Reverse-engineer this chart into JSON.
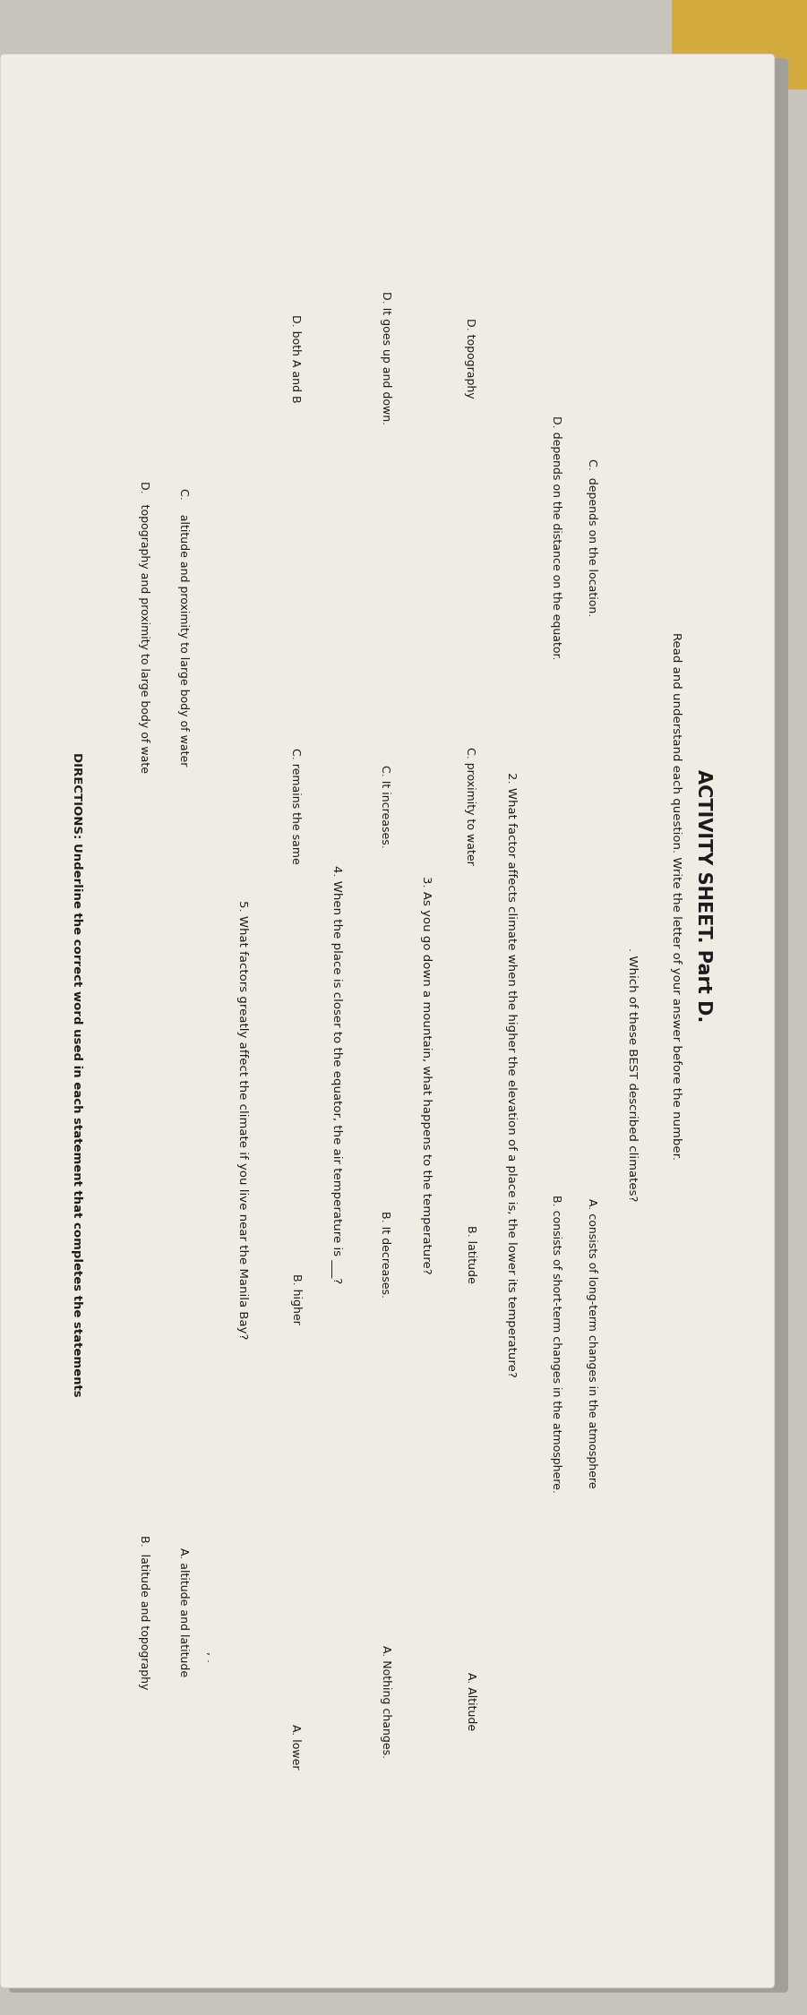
{
  "bg_color": "#c8c4bb",
  "paper_color": "#f0ece4",
  "yellow_color": "#d4a830",
  "text_color": "#1a1a1a",
  "title": "ACTIVITY SHEET. Part D.",
  "instructions": "Read and understand each question. Write the letter of your answer before the number.",
  "q1_text": ". Which of these BEST described climates?",
  "q1_optA": "A. consists of long-term changes in the atmosphere",
  "q1_optC": "C.  depends on the location.",
  "q1_optB": "B. consists of short-term changes in the atmosphere.",
  "q1_optD": "D. depends on the distance on the equator.",
  "q2_text": "2. What factor affects climate when the higher the elevation of a place is, the lower its temperature?",
  "q2_optA": "A. Altitude",
  "q2_optB": "B. latitude",
  "q2_optC": "C. proximity to water",
  "q2_optD": "D. topography",
  "q3_text": "As you go down a mountain, what happens to the temperature?",
  "q3_num": "3.",
  "q3_optA": "A. Nothing changes.",
  "q3_optB": "B. It decreases.",
  "q3_optC": "C. It increases.",
  "q3_optD": "D. It goes up and down.",
  "q4_text": "When the place is closer to the equator, the air temperature is",
  "q4_num": "4.",
  "q4_optA": "A. lower",
  "q4_optB": "B. higher",
  "q4_optC": "C. remains the same",
  "q4_optD": "D. both A and B",
  "q5_text": "What factors greatly affect the climate if you live near the Manila Bay?",
  "q5_num": "5.",
  "q5_optA": "A. altitude and latitude",
  "q5_optC": "C.    altitude and proximity to large body of water",
  "q5_optB": "B.  latitude and topography",
  "q5_optD": "D.   topography and proximity to large body of wate",
  "footer": "DIRECTIONS: Underline the correct word used in each statement that completes the statements",
  "font_size_title": 15,
  "font_size_instructions": 9.5,
  "font_size_q": 9.5,
  "font_size_opt": 9.0
}
